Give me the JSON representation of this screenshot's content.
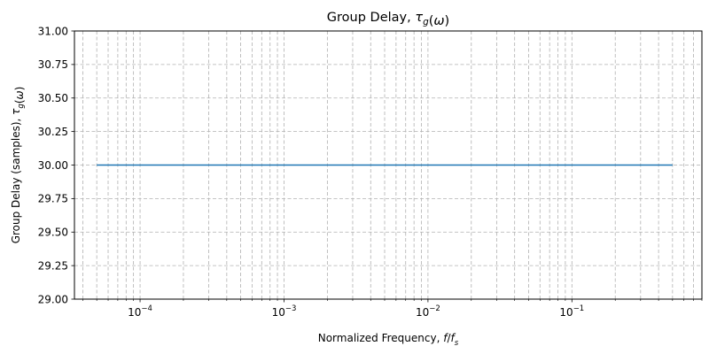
{
  "chart_data": {
    "type": "line",
    "title": "Group Delay, τ_g(ω)",
    "xlabel": "Normalized Frequency, f/f_s",
    "ylabel": "Group Delay (samples), τ_g(ω)",
    "xscale": "log",
    "xlim": [
      3.5e-05,
      0.8
    ],
    "ylim": [
      29.0,
      31.0
    ],
    "grid": true,
    "x_tick_labels": [
      "10^-4",
      "10^-3",
      "10^-2",
      "10^-1"
    ],
    "y_ticks": [
      29.0,
      29.25,
      29.5,
      29.75,
      30.0,
      30.25,
      30.5,
      30.75,
      31.0
    ],
    "y_tick_labels": [
      "29.00",
      "29.25",
      "29.50",
      "29.75",
      "30.00",
      "30.25",
      "30.50",
      "30.75",
      "31.00"
    ],
    "series": [
      {
        "color": "#1f77b4",
        "x": [
          5e-05,
          0.0001,
          0.001,
          0.01,
          0.1,
          0.5
        ],
        "y": [
          30.0,
          30.0,
          30.0,
          30.0,
          30.0,
          30.0
        ]
      }
    ]
  }
}
